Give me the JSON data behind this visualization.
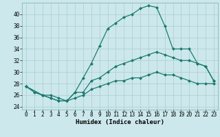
{
  "title": "",
  "xlabel": "Humidex (Indice chaleur)",
  "bg_color": "#cce8ec",
  "grid_color": "#aacccc",
  "line_color": "#1a7a6e",
  "xlim": [
    -0.5,
    23.5
  ],
  "ylim": [
    23.5,
    42.0
  ],
  "yticks": [
    24,
    26,
    28,
    30,
    32,
    34,
    36,
    38,
    40
  ],
  "xticks": [
    0,
    1,
    2,
    3,
    4,
    5,
    6,
    7,
    8,
    9,
    10,
    11,
    12,
    13,
    14,
    15,
    16,
    17,
    18,
    19,
    20,
    21,
    22,
    23
  ],
  "series1_x": [
    0,
    1,
    2,
    3,
    4,
    5,
    6,
    7,
    8,
    9,
    10,
    11,
    12,
    13,
    14,
    15,
    16,
    17,
    18,
    19,
    20,
    21,
    22,
    23
  ],
  "series1_y": [
    27.5,
    26.5,
    26.0,
    25.5,
    25.0,
    25.0,
    26.5,
    29.0,
    31.5,
    34.5,
    37.5,
    38.5,
    39.5,
    40.0,
    41.0,
    41.5,
    41.2,
    38.0,
    34.0,
    34.0,
    34.0,
    31.5,
    31.0,
    28.5
  ],
  "series2_x": [
    0,
    2,
    3,
    4,
    5,
    6,
    7,
    8,
    9,
    10,
    11,
    12,
    13,
    14,
    15,
    16,
    17,
    18,
    19,
    20,
    21,
    22,
    23
  ],
  "series2_y": [
    27.5,
    26.0,
    26.0,
    25.5,
    25.0,
    26.5,
    26.5,
    28.5,
    29.0,
    30.0,
    31.0,
    31.5,
    32.0,
    32.5,
    33.0,
    33.5,
    33.0,
    32.5,
    32.0,
    32.0,
    31.5,
    31.0,
    28.5
  ],
  "series3_x": [
    0,
    2,
    3,
    4,
    5,
    6,
    7,
    8,
    9,
    10,
    11,
    12,
    13,
    14,
    15,
    16,
    17,
    18,
    19,
    20,
    21,
    22,
    23
  ],
  "series3_y": [
    27.5,
    26.0,
    25.5,
    25.0,
    25.0,
    25.5,
    26.0,
    27.0,
    27.5,
    28.0,
    28.5,
    28.5,
    29.0,
    29.0,
    29.5,
    30.0,
    29.5,
    29.5,
    29.0,
    28.5,
    28.0,
    28.0,
    28.0
  ]
}
